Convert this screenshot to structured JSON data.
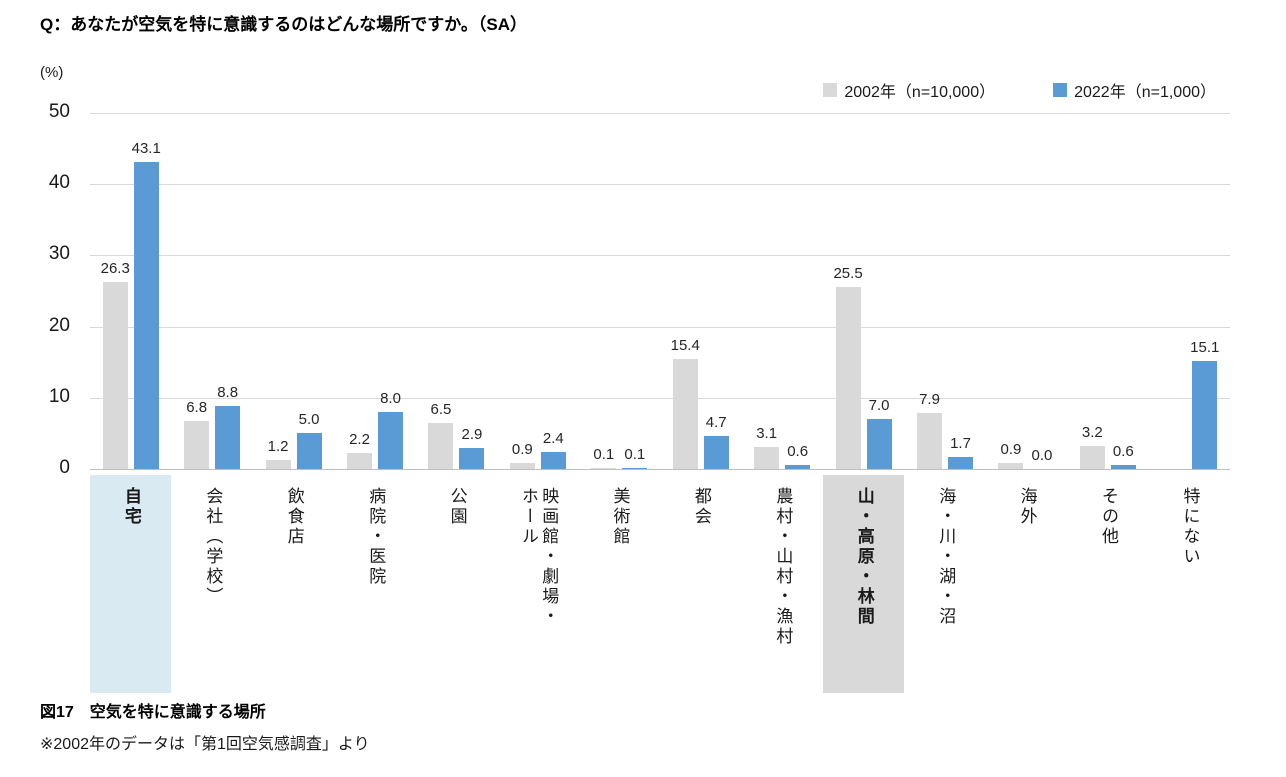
{
  "title": "Q：あなたが空気を特に意識するのはどんな場所ですか。（SA）",
  "y_axis": {
    "unit": "(%)",
    "ticks": [
      50,
      40,
      30,
      20,
      10,
      0
    ],
    "max": 50
  },
  "legend": [
    {
      "label": "2002年（n=10,000）",
      "color": "#d9d9d9"
    },
    {
      "label": "2022年（n=1,000）",
      "color": "#5b9bd5"
    }
  ],
  "chart_data": {
    "type": "bar",
    "title": "空気を特に意識する場所",
    "ylabel": "(%)",
    "ylim": [
      0,
      50
    ],
    "grid": true,
    "legend_position": "top-right",
    "categories": [
      {
        "label": "自宅",
        "highlight": "blue"
      },
      {
        "label": "会社（学校）",
        "highlight": null
      },
      {
        "label": "飲食店",
        "highlight": null
      },
      {
        "label": "病院・医院",
        "highlight": null
      },
      {
        "label": "公園",
        "highlight": null
      },
      {
        "label": "映画館・劇場・\nホール",
        "highlight": null
      },
      {
        "label": "美術館",
        "highlight": null
      },
      {
        "label": "都会",
        "highlight": null
      },
      {
        "label": "農村・山村・漁村",
        "highlight": null
      },
      {
        "label": "山・高原・林間",
        "highlight": "gray"
      },
      {
        "label": "海・川・湖・沼",
        "highlight": null
      },
      {
        "label": "海外",
        "highlight": null
      },
      {
        "label": "その他",
        "highlight": null
      },
      {
        "label": "特にない",
        "highlight": null
      }
    ],
    "series": [
      {
        "name": "2002年（n=10,000）",
        "color": "#d9d9d9",
        "values": [
          26.3,
          6.8,
          1.2,
          2.2,
          6.5,
          0.9,
          0.1,
          15.4,
          3.1,
          25.5,
          7.9,
          0.9,
          3.2,
          null
        ]
      },
      {
        "name": "2022年（n=1,000）",
        "color": "#5b9bd5",
        "values": [
          43.1,
          8.8,
          5.0,
          8.0,
          2.9,
          2.4,
          0.1,
          4.7,
          0.6,
          7.0,
          1.7,
          0.0,
          0.6,
          15.1
        ]
      }
    ],
    "highlight_colors": {
      "blue": "#daeaf2",
      "gray": "#d9d9d9"
    }
  },
  "caption": {
    "figure": "図17　空気を特に意識する場所",
    "note": "※2002年のデータは「第1回空気感調査」より"
  }
}
